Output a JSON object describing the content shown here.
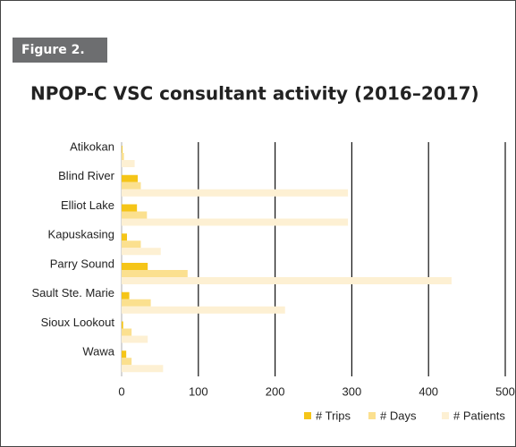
{
  "figure_label": "Figure 2.",
  "chart_data": {
    "type": "bar",
    "orientation": "horizontal",
    "title": "NPOP-C VSC consultant activity (2016–2017)",
    "categories": [
      "Atikokan",
      "Blind River",
      "Elliot Lake",
      "Kapuskasing",
      "Parry Sound",
      "Sault Ste. Marie",
      "Sioux Lookout",
      "Wawa"
    ],
    "series": [
      {
        "name": "# Trips",
        "color": "#f5c518",
        "values": [
          1,
          21,
          20,
          7,
          34,
          10,
          2,
          6
        ]
      },
      {
        "name": "# Days",
        "color": "#fbe08f",
        "values": [
          3,
          25,
          33,
          25,
          86,
          38,
          13,
          13
        ]
      },
      {
        "name": "# Patients",
        "color": "#fdf0d3",
        "values": [
          17,
          295,
          295,
          51,
          430,
          213,
          34,
          54
        ]
      }
    ],
    "xlim": [
      0,
      500
    ],
    "xticks": [
      0,
      100,
      200,
      300,
      400,
      500
    ],
    "grid": true,
    "legend": "bottom-right"
  }
}
